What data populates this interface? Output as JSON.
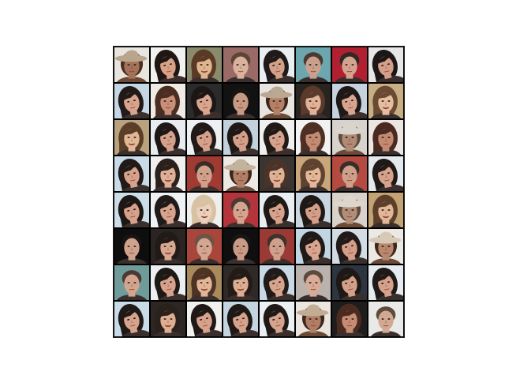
{
  "figure": {
    "rows": 8,
    "cols": 8,
    "tiles": [
      {
        "bg": "#e8e4de",
        "skin": "#a37258",
        "hair": "#4a2f1f",
        "hat": "#b9a48c",
        "variant": "hat"
      },
      {
        "bg": "#f1f1ef",
        "skin": "#d8a287",
        "hair": "#1f1714",
        "hat": "",
        "variant": "woman-tilt"
      },
      {
        "bg": "#8a8b6d",
        "skin": "#e0b58f",
        "hair": "#5a3a25",
        "hat": "",
        "variant": "woman"
      },
      {
        "bg": "#9a6a66",
        "skin": "#d9b29d",
        "hair": "#5e4636",
        "hat": "",
        "variant": "man"
      },
      {
        "bg": "#e9eef3",
        "skin": "#d3a18a",
        "hair": "#1f1a19",
        "hat": "",
        "variant": "woman-tilt"
      },
      {
        "bg": "#6ca7b0",
        "skin": "#c9a08c",
        "hair": "#4b3a33",
        "hat": "",
        "variant": "man"
      },
      {
        "bg": "#b02030",
        "skin": "#d4a38d",
        "hair": "#2e2826",
        "hat": "",
        "variant": "man-dark"
      },
      {
        "bg": "#e6e6e6",
        "skin": "#d39f8a",
        "hair": "#1c1716",
        "hat": "",
        "variant": "woman-tilt"
      },
      {
        "bg": "#c5d7e4",
        "skin": "#d7a48e",
        "hair": "#211a18",
        "hat": "",
        "variant": "woman-tilt"
      },
      {
        "bg": "#efeae4",
        "skin": "#c99077",
        "hair": "#4b2d21",
        "hat": "",
        "variant": "woman-dark"
      },
      {
        "bg": "#2b2b2b",
        "skin": "#d8a58e",
        "hair": "#1c1715",
        "hat": "",
        "variant": "woman-tilt"
      },
      {
        "bg": "#121212",
        "skin": "#c79a84",
        "hair": "#1b1512",
        "hat": "",
        "variant": "man-dark"
      },
      {
        "bg": "#e8e5e0",
        "skin": "#b48066",
        "hair": "#3b261c",
        "hat": "#bba892",
        "variant": "hat"
      },
      {
        "bg": "#2a2421",
        "skin": "#e0b297",
        "hair": "#5a3a2a",
        "hat": "",
        "variant": "woman"
      },
      {
        "bg": "#c6d3df",
        "skin": "#d7a58f",
        "hair": "#1e1817",
        "hat": "",
        "variant": "woman-tilt"
      },
      {
        "bg": "#c7ae83",
        "skin": "#e5bea0",
        "hair": "#6a4a32",
        "hat": "",
        "variant": "woman"
      },
      {
        "bg": "#b9a27e",
        "skin": "#e2b896",
        "hair": "#5b3e28",
        "hat": "",
        "variant": "woman"
      },
      {
        "bg": "#e7ecf1",
        "skin": "#d6a18b",
        "hair": "#1d1715",
        "hat": "",
        "variant": "woman-tilt"
      },
      {
        "bg": "#ecf0f3",
        "skin": "#d5a18b",
        "hair": "#1f1917",
        "hat": "",
        "variant": "woman-tilt"
      },
      {
        "bg": "#c3d1dd",
        "skin": "#d39f89",
        "hair": "#1e1816",
        "hat": "",
        "variant": "woman-tilt"
      },
      {
        "bg": "#f0f0ee",
        "skin": "#d7a38d",
        "hair": "#201916",
        "hat": "",
        "variant": "woman-tilt"
      },
      {
        "bg": "#f2f2f2",
        "skin": "#c28b73",
        "hair": "#4e2f23",
        "hat": "",
        "variant": "woman-dark"
      },
      {
        "bg": "#d7d2cc",
        "skin": "#b08a74",
        "hair": "#5e4b3e",
        "hat": "#dad4cc",
        "variant": "hat"
      },
      {
        "bg": "#ece7e2",
        "skin": "#c38a72",
        "hair": "#4a2a20",
        "hat": "",
        "variant": "woman-dark"
      },
      {
        "bg": "#c8dbe6",
        "skin": "#d6a28c",
        "hair": "#201a18",
        "hat": "",
        "variant": "woman-tilt"
      },
      {
        "bg": "#f0efed",
        "skin": "#dfb096",
        "hair": "#2a201c",
        "hat": "",
        "variant": "woman"
      },
      {
        "bg": "#a13a33",
        "skin": "#d0a08b",
        "hair": "#3a2c28",
        "hat": "",
        "variant": "man"
      },
      {
        "bg": "#ece8e4",
        "skin": "#b27f66",
        "hair": "#3a251c",
        "hat": "#c3b29c",
        "variant": "hat"
      },
      {
        "bg": "#3a3531",
        "skin": "#dfb195",
        "hair": "#4a3328",
        "hat": "",
        "variant": "woman"
      },
      {
        "bg": "#c9a77b",
        "skin": "#e3b898",
        "hair": "#5f4230",
        "hat": "",
        "variant": "woman"
      },
      {
        "bg": "#b44a40",
        "skin": "#cea08a",
        "hair": "#3b2d28",
        "hat": "",
        "variant": "man"
      },
      {
        "bg": "#e4e9ee",
        "skin": "#d5a28c",
        "hair": "#1f1917",
        "hat": "",
        "variant": "woman-tilt"
      },
      {
        "bg": "#cddde8",
        "skin": "#d6a18b",
        "hair": "#1d1816",
        "hat": "",
        "variant": "woman-tilt"
      },
      {
        "bg": "#eef2f5",
        "skin": "#d7a38d",
        "hair": "#201a18",
        "hat": "",
        "variant": "woman-tilt"
      },
      {
        "bg": "#efefed",
        "skin": "#ecd0bc",
        "hair": "#d8c2a3",
        "hat": "",
        "variant": "woman-blond"
      },
      {
        "bg": "#b4343b",
        "skin": "#d3a58f",
        "hair": "#4b3a33",
        "hat": "",
        "variant": "man"
      },
      {
        "bg": "#e8edf2",
        "skin": "#d6a28c",
        "hair": "#1e1816",
        "hat": "",
        "variant": "woman-tilt"
      },
      {
        "bg": "#c9d6e1",
        "skin": "#d39f89",
        "hair": "#1e1816",
        "hat": "",
        "variant": "woman-tilt"
      },
      {
        "bg": "#d8d2cb",
        "skin": "#b38d77",
        "hair": "#5e4b3e",
        "hat": "#ddd6cd",
        "variant": "hat"
      },
      {
        "bg": "#c3a273",
        "skin": "#e2b797",
        "hair": "#5c3f2b",
        "hat": "",
        "variant": "woman"
      },
      {
        "bg": "#0e0e0e",
        "skin": "#cfa28d",
        "hair": "#191311",
        "hat": "",
        "variant": "man-dark"
      },
      {
        "bg": "#2a2523",
        "skin": "#d7a78f",
        "hair": "#221a17",
        "hat": "",
        "variant": "woman"
      },
      {
        "bg": "#a9463c",
        "skin": "#d3a692",
        "hair": "#6a5446",
        "hat": "",
        "variant": "man"
      },
      {
        "bg": "#0f0f0f",
        "skin": "#c99b86",
        "hair": "#1a1412",
        "hat": "",
        "variant": "man-dark"
      },
      {
        "bg": "#9b3a35",
        "skin": "#cfa18c",
        "hair": "#3f322d",
        "hat": "",
        "variant": "man"
      },
      {
        "bg": "#c2d5e3",
        "skin": "#d8a58f",
        "hair": "#1f1917",
        "hat": "",
        "variant": "woman-tilt"
      },
      {
        "bg": "#d3dbe3",
        "skin": "#d39e88",
        "hair": "#211a18",
        "hat": "",
        "variant": "woman-tilt"
      },
      {
        "bg": "#ece9e5",
        "skin": "#b8876e",
        "hair": "#3d281e",
        "hat": "#d6c9b7",
        "variant": "hat"
      },
      {
        "bg": "#6f9c9a",
        "skin": "#d3a48e",
        "hair": "#4a3a33",
        "hat": "",
        "variant": "man"
      },
      {
        "bg": "#eceff2",
        "skin": "#d6a28c",
        "hair": "#1e1816",
        "hat": "",
        "variant": "woman-tilt"
      },
      {
        "bg": "#a98a5d",
        "skin": "#e1b595",
        "hair": "#4c3324",
        "hat": "",
        "variant": "woman"
      },
      {
        "bg": "#2f2a27",
        "skin": "#ddad91",
        "hair": "#241b18",
        "hat": "",
        "variant": "woman"
      },
      {
        "bg": "#c8d8e4",
        "skin": "#d7a48e",
        "hair": "#201a18",
        "hat": "",
        "variant": "woman-tilt"
      },
      {
        "bg": "#b9b2ad",
        "skin": "#d7ab96",
        "hair": "#5d4a3f",
        "hat": "",
        "variant": "man"
      },
      {
        "bg": "#2c3540",
        "skin": "#d29f89",
        "hair": "#1e1816",
        "hat": "",
        "variant": "woman-tilt"
      },
      {
        "bg": "#e6ebef",
        "skin": "#d5a18b",
        "hair": "#1f1917",
        "hat": "",
        "variant": "woman-tilt"
      },
      {
        "bg": "#c9dbe7",
        "skin": "#d7a38d",
        "hair": "#1f1917",
        "hat": "",
        "variant": "woman-tilt"
      },
      {
        "bg": "#2c2624",
        "skin": "#dfae92",
        "hair": "#2a201c",
        "hat": "",
        "variant": "woman"
      },
      {
        "bg": "#f1f1ef",
        "skin": "#d6a28c",
        "hair": "#1e1816",
        "hat": "",
        "variant": "woman-tilt"
      },
      {
        "bg": "#c4d4e0",
        "skin": "#d5a28c",
        "hair": "#1e1816",
        "hat": "",
        "variant": "woman-tilt"
      },
      {
        "bg": "#ebf0f4",
        "skin": "#d6a38d",
        "hair": "#1f1917",
        "hat": "",
        "variant": "woman-tilt"
      },
      {
        "bg": "#eae5df",
        "skin": "#b17e65",
        "hair": "#3c271d",
        "hat": "#c1ad94",
        "variant": "hat"
      },
      {
        "bg": "#1d1d1d",
        "skin": "#c68d74",
        "hair": "#4b2b20",
        "hat": "",
        "variant": "woman-dark"
      },
      {
        "bg": "#e9e9e8",
        "skin": "#d2a892",
        "hair": "#5e4a3e",
        "hat": "",
        "variant": "man"
      }
    ]
  }
}
